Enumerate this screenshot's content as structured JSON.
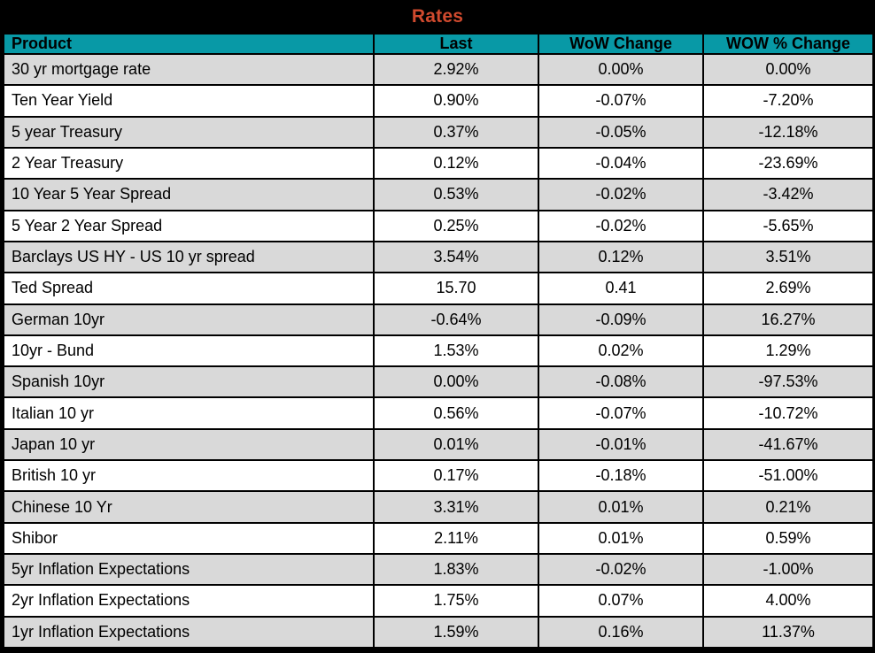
{
  "title": "Rates",
  "colors": {
    "title_bg": "#000000",
    "title_text": "#D04A2E",
    "header_bg": "#0899A6",
    "header_text": "#000000",
    "row_bg": "#FFFFFF",
    "row_alt_bg": "#D9D9D9",
    "border": "#000000"
  },
  "chart_data": {
    "type": "table",
    "title": "Rates",
    "columns": [
      "Product",
      "Last",
      "WoW Change",
      "WOW % Change"
    ],
    "rows": [
      [
        "30 yr mortgage rate",
        "2.92%",
        "0.00%",
        "0.00%"
      ],
      [
        "Ten Year Yield",
        "0.90%",
        "-0.07%",
        "-7.20%"
      ],
      [
        "5 year Treasury",
        "0.37%",
        "-0.05%",
        "-12.18%"
      ],
      [
        "2 Year Treasury",
        "0.12%",
        "-0.04%",
        "-23.69%"
      ],
      [
        "10 Year 5 Year Spread",
        "0.53%",
        "-0.02%",
        "-3.42%"
      ],
      [
        "5 Year 2 Year Spread",
        "0.25%",
        "-0.02%",
        "-5.65%"
      ],
      [
        "Barclays US HY - US 10 yr spread",
        "3.54%",
        "0.12%",
        "3.51%"
      ],
      [
        "Ted Spread",
        "15.70",
        "0.41",
        "2.69%"
      ],
      [
        "German 10yr",
        "-0.64%",
        "-0.09%",
        "16.27%"
      ],
      [
        "10yr - Bund",
        "1.53%",
        "0.02%",
        "1.29%"
      ],
      [
        "Spanish 10yr",
        "0.00%",
        "-0.08%",
        "-97.53%"
      ],
      [
        "Italian 10 yr",
        "0.56%",
        "-0.07%",
        "-10.72%"
      ],
      [
        "Japan 10 yr",
        "0.01%",
        "-0.01%",
        "-41.67%"
      ],
      [
        "British 10 yr",
        "0.17%",
        "-0.18%",
        "-51.00%"
      ],
      [
        "Chinese 10 Yr",
        "3.31%",
        "0.01%",
        "0.21%"
      ],
      [
        "Shibor",
        "2.11%",
        "0.01%",
        "0.59%"
      ],
      [
        "5yr Inflation Expectations",
        "1.83%",
        "-0.02%",
        "-1.00%"
      ],
      [
        "2yr Inflation Expectations",
        "1.75%",
        "0.07%",
        "4.00%"
      ],
      [
        "1yr Inflation Expectations",
        "1.59%",
        "0.16%",
        "11.37%"
      ]
    ]
  }
}
